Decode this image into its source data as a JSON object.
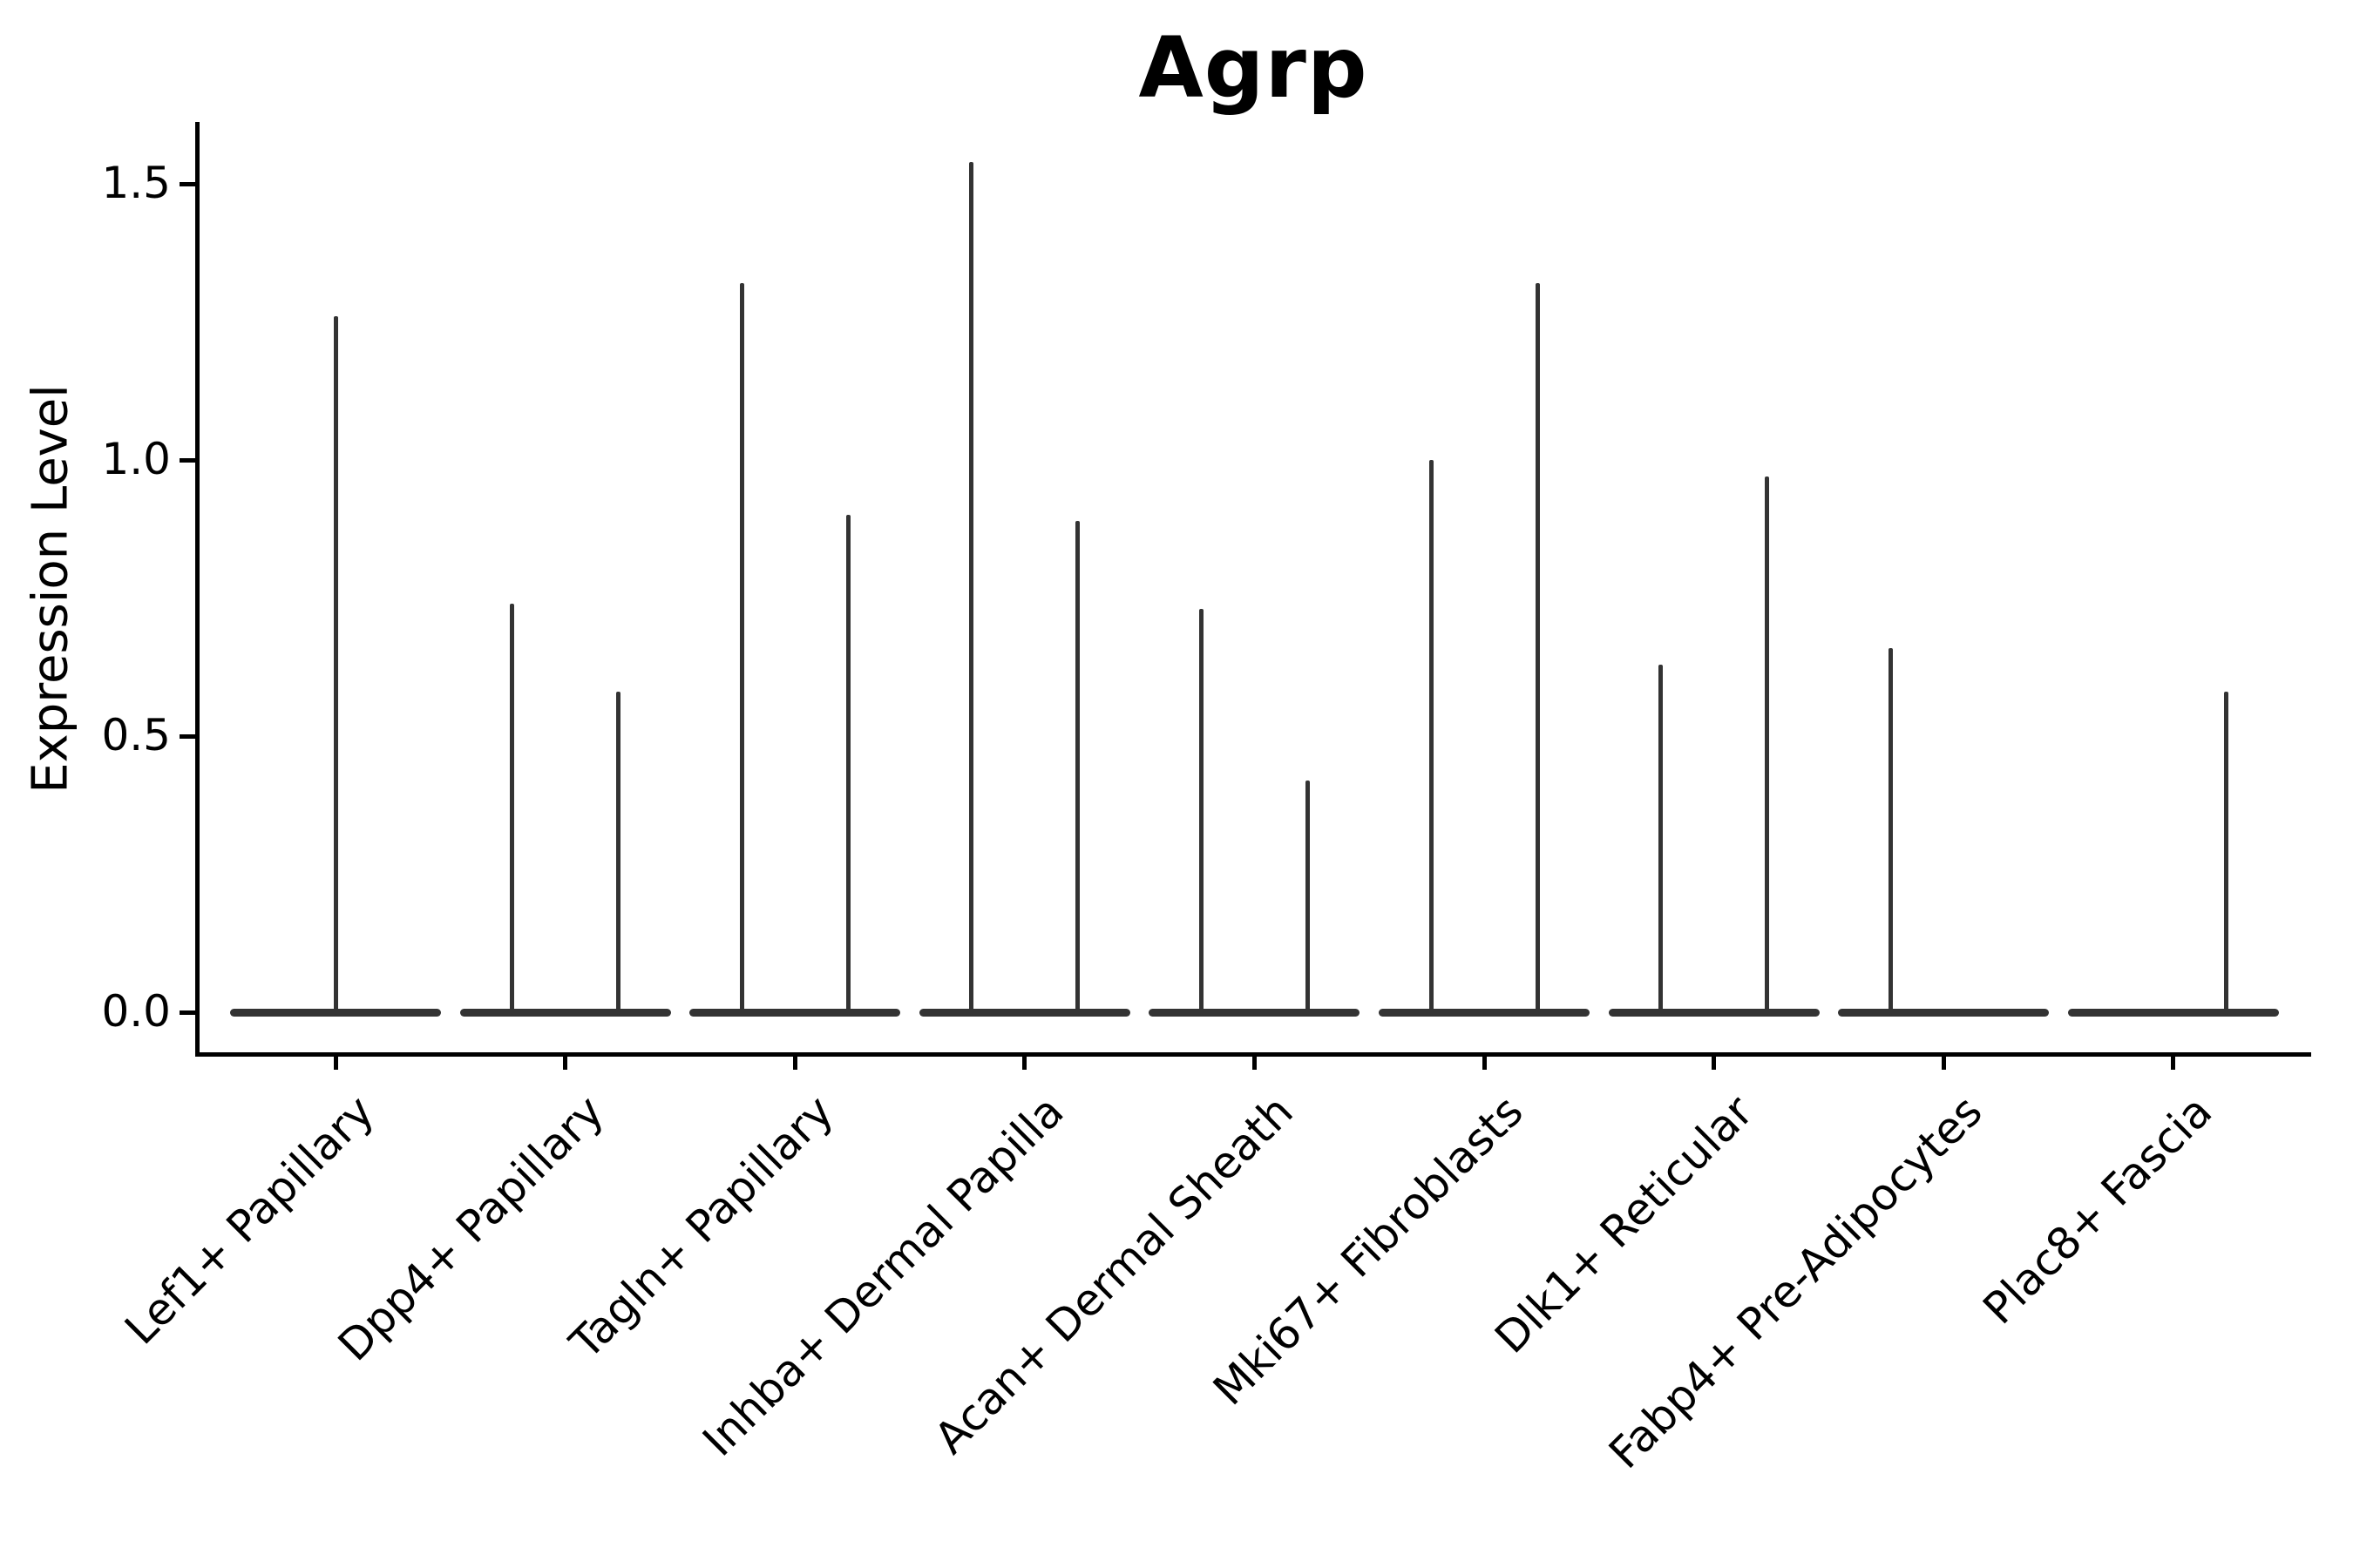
{
  "chart_data": {
    "type": "violin",
    "title": "Agrp",
    "ylabel": "Expression Level",
    "xlabel": "",
    "ylim": [
      0,
      1.61
    ],
    "yticks": [
      0.0,
      0.5,
      1.0,
      1.5
    ],
    "grid": false,
    "legend_position": "none",
    "categories": [
      "Lef1+ Papillary",
      "Dpp4+ Papillary",
      "Tagln+ Papillary",
      "Inhba+ Dermal Papilla",
      "Acan+ Dermal Sheath",
      "Mki67+ Fibroblasts",
      "Dlk1+ Reticular",
      "Fabp4+ Pre-Adipocytes",
      "Plac8+ Fascia"
    ],
    "description": "Violin plot of Agrp expression; each violin is a flat band at 0 with thin density spikes rising to the max expression value",
    "violins": [
      {
        "category": "Lef1+ Papillary",
        "spikes": [
          {
            "pos": "center",
            "max": 1.26
          }
        ]
      },
      {
        "category": "Dpp4+ Papillary",
        "spikes": [
          {
            "pos": "left",
            "max": 0.74
          },
          {
            "pos": "right",
            "max": 0.58
          }
        ]
      },
      {
        "category": "Tagln+ Papillary",
        "spikes": [
          {
            "pos": "left",
            "max": 1.32
          },
          {
            "pos": "right",
            "max": 0.9
          }
        ]
      },
      {
        "category": "Inhba+ Dermal Papilla",
        "spikes": [
          {
            "pos": "left",
            "max": 1.54
          },
          {
            "pos": "right",
            "max": 0.89
          }
        ]
      },
      {
        "category": "Acan+ Dermal Sheath",
        "spikes": [
          {
            "pos": "left",
            "max": 0.73
          },
          {
            "pos": "right",
            "max": 0.42
          }
        ]
      },
      {
        "category": "Mki67+ Fibroblasts",
        "spikes": [
          {
            "pos": "left",
            "max": 1.0
          },
          {
            "pos": "right",
            "max": 1.32
          }
        ]
      },
      {
        "category": "Dlk1+ Reticular",
        "spikes": [
          {
            "pos": "left",
            "max": 0.63
          },
          {
            "pos": "right",
            "max": 0.97
          }
        ]
      },
      {
        "category": "Fabp4+ Pre-Adipocytes",
        "spikes": [
          {
            "pos": "left",
            "max": 0.66
          }
        ]
      },
      {
        "category": "Plac8+ Fascia",
        "spikes": [
          {
            "pos": "right",
            "max": 0.58
          }
        ]
      }
    ],
    "colors": {
      "violin_stroke": "#333333",
      "axis": "#000000",
      "text": "#000000",
      "background": "#ffffff"
    }
  }
}
